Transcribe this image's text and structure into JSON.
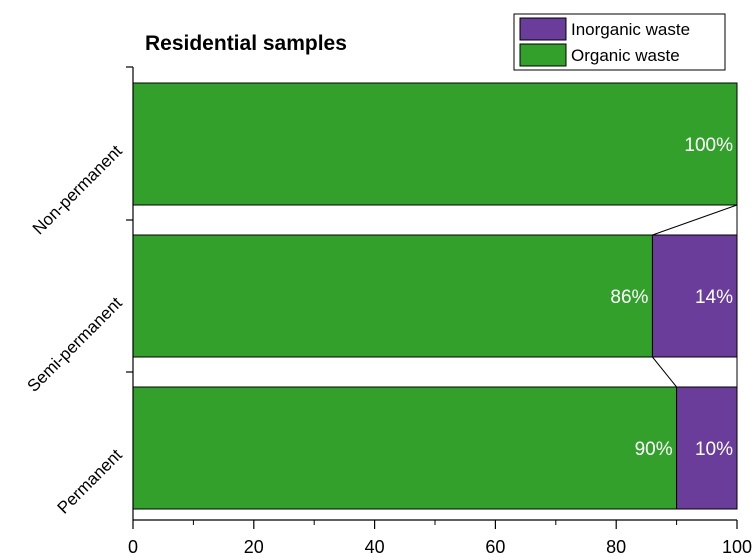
{
  "chart_data": {
    "type": "bar",
    "orientation": "horizontal",
    "stacked": "percent",
    "title": "Residential samples",
    "categories": [
      "Non-permanent",
      "Semi-permanent",
      "Permanent"
    ],
    "series": [
      {
        "name": "Organic waste",
        "values": [
          100,
          86,
          90
        ],
        "labels": [
          "100%",
          "86%",
          "90%"
        ],
        "color": "#33a02c"
      },
      {
        "name": "Inorganic waste",
        "values": [
          0,
          14,
          10
        ],
        "labels": [
          "",
          "14%",
          "10%"
        ],
        "color": "#6a3d9a"
      }
    ],
    "xlim": [
      0,
      100
    ],
    "xticks": [
      "0",
      "20",
      "40",
      "60",
      "80",
      "100"
    ],
    "xlabel": "",
    "ylabel": "",
    "legend": {
      "position": "top-right",
      "order": [
        "Inorganic waste",
        "Organic waste"
      ]
    },
    "connector_lines": true,
    "grid": false
  }
}
